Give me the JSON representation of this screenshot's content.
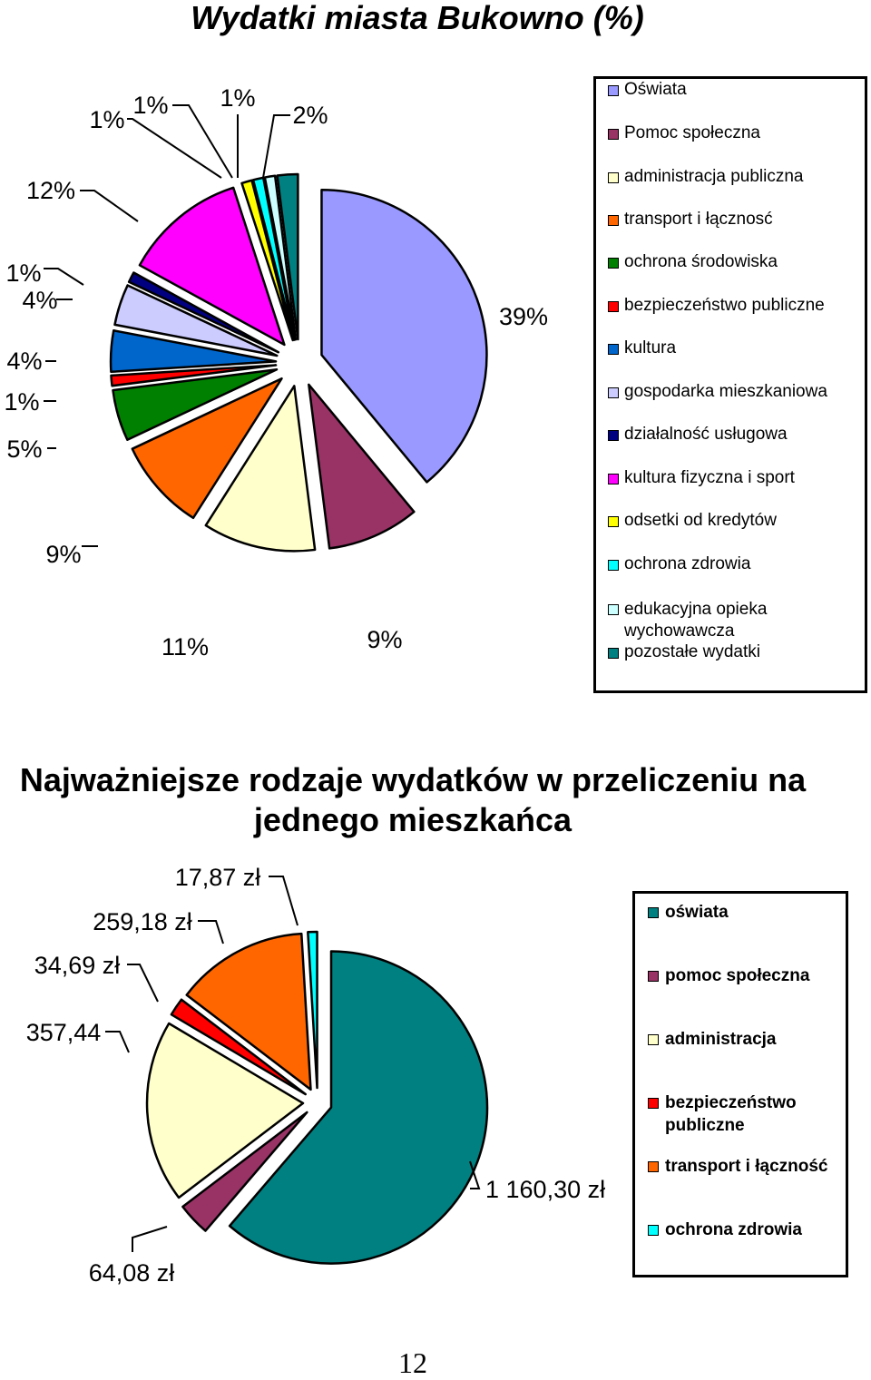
{
  "chart_data": [
    {
      "type": "pie",
      "title": "Wydatki miasta Bukowno (%)",
      "categories": [
        "Oświata",
        "Pomoc społeczna",
        "administracja publiczna",
        "transport i łącznosć",
        "ochrona środowiska",
        "bezpieczeństwo publiczne",
        "kultura",
        "gospodarka mieszkaniowa",
        "działalność usługowa",
        "kultura fizyczna i sport",
        "odsetki od kredytów",
        "ochrona zdrowia",
        "edukacyjna opieka wychowawcza",
        "pozostałe wydatki"
      ],
      "values": [
        39,
        9,
        11,
        9,
        5,
        1,
        4,
        4,
        1,
        12,
        1,
        1,
        1,
        2
      ],
      "labels": [
        "39%",
        "9%",
        "11%",
        "9%",
        "5%",
        "1%",
        "4%",
        "4%",
        "1%",
        "12%",
        "1%",
        "1%",
        "1%",
        "2%"
      ],
      "colors": [
        "#9999ff",
        "#993366",
        "#ffffcc",
        "#ff6600",
        "#008000",
        "#ff0000",
        "#0066cc",
        "#ccccff",
        "#000080",
        "#ff00ff",
        "#ffff00",
        "#00ffff",
        "#ccffff",
        "#008080"
      ],
      "legend": "right"
    },
    {
      "type": "pie",
      "title": "Najważniejsze rodzaje wydatków w przeliczeniu na jednego mieszkańca",
      "categories": [
        "oświata",
        "pomoc społeczna",
        "administracja",
        "bezpieczeństwo publiczne",
        "transport i łączność",
        "ochrona zdrowia"
      ],
      "values": [
        1160.3,
        64.08,
        357.44,
        34.69,
        259.18,
        17.87
      ],
      "labels": [
        "1 160,30 zł",
        "64,08 zł",
        "357,44",
        "34,69 zł",
        "259,18 zł",
        "17,87 zł"
      ],
      "colors": [
        "#008080",
        "#993366",
        "#ffffcc",
        "#ff0000",
        "#ff6600",
        "#00ffff"
      ],
      "legend": "right"
    }
  ],
  "page": {
    "number": "12"
  }
}
